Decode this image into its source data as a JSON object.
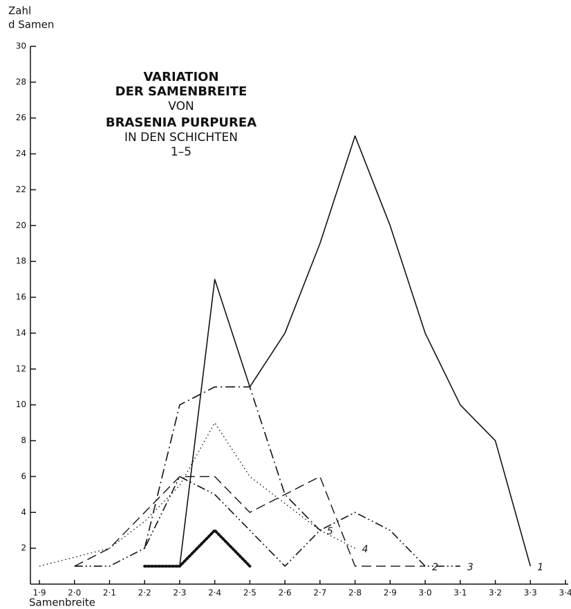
{
  "chart_data": {
    "type": "line",
    "title": [
      "VARIATION",
      "DER SAMENBREITE",
      "VON",
      "BRASENIA PURPUREA",
      "IN DEN SCHICHTEN",
      "1–5"
    ],
    "y_label": [
      "Zahl",
      "d Samen"
    ],
    "x_label": "Samenbreite",
    "x": [
      1.9,
      2.0,
      2.1,
      2.2,
      2.3,
      2.4,
      2.5,
      2.6,
      2.7,
      2.8,
      2.9,
      3.0,
      3.1,
      3.2,
      3.3
    ],
    "series": [
      {
        "name": "1",
        "color": "#111111",
        "dash": "none",
        "width": 1.6,
        "values": [
          null,
          null,
          null,
          null,
          1,
          17,
          11,
          14,
          19,
          25,
          20,
          14,
          10,
          8,
          1
        ]
      },
      {
        "name": "2",
        "color": "#111111",
        "dash": "14 7",
        "width": 1.4,
        "values": [
          null,
          1,
          2,
          4,
          6,
          6,
          4,
          5,
          6,
          1,
          1,
          1,
          null,
          null,
          null
        ]
      },
      {
        "name": "3",
        "color": "#111111",
        "dash": "12 4 2 4 2 4",
        "width": 1.6,
        "values": [
          null,
          1,
          1,
          2,
          6,
          5,
          3,
          1,
          3,
          4,
          3,
          1,
          1,
          null,
          null
        ]
      },
      {
        "name": "4",
        "color": "#111111",
        "dash": "1.5 4",
        "width": 1.4,
        "values": [
          1,
          1.5,
          2,
          3.5,
          5.5,
          9,
          6,
          4.5,
          3,
          2,
          null,
          null,
          null,
          null,
          null
        ]
      },
      {
        "name": "5",
        "color": "#111111",
        "dash": "14 5 2 5",
        "width": 1.6,
        "values": [
          null,
          null,
          null,
          2,
          10,
          11,
          11,
          5,
          3,
          null,
          null,
          null,
          null,
          null,
          null
        ]
      },
      {
        "color": "#111111",
        "dash": "2 3",
        "width": 4,
        "values": [
          null,
          null,
          null,
          1,
          1,
          3,
          1,
          null,
          null,
          null,
          null,
          null,
          null,
          null,
          null
        ]
      }
    ],
    "xlim": [
      1.9,
      3.4
    ],
    "xticks": [
      {
        "value": 1.9,
        "label": "1·9"
      },
      {
        "value": 2.0,
        "label": "2·0"
      },
      {
        "value": 2.1,
        "label": "2·1"
      },
      {
        "value": 2.2,
        "label": "2·2"
      },
      {
        "value": 2.3,
        "label": "2·3"
      },
      {
        "value": 2.4,
        "label": "2·4"
      },
      {
        "value": 2.5,
        "label": "2·5"
      },
      {
        "value": 2.6,
        "label": "2·6"
      },
      {
        "value": 2.7,
        "label": "2·7"
      },
      {
        "value": 2.8,
        "label": "2·8"
      },
      {
        "value": 2.9,
        "label": "2·9"
      },
      {
        "value": 3.0,
        "label": "3·0"
      },
      {
        "value": 3.1,
        "label": "3·1"
      },
      {
        "value": 3.2,
        "label": "3·2"
      },
      {
        "value": 3.3,
        "label": "3·3"
      },
      {
        "value": 3.4,
        "label": "3·4"
      }
    ],
    "ylim": [
      0,
      30
    ],
    "yticks": [
      2,
      4,
      6,
      8,
      10,
      12,
      14,
      16,
      18,
      20,
      22,
      24,
      26,
      28,
      30
    ]
  }
}
